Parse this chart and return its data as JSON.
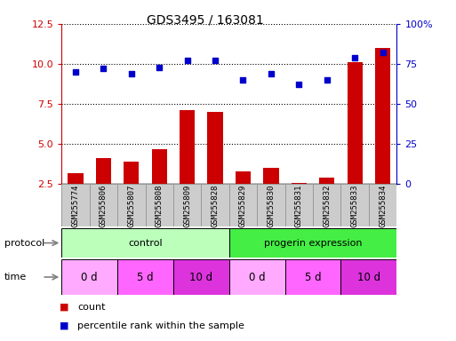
{
  "title": "GDS3495 / 163081",
  "samples": [
    "GSM255774",
    "GSM255806",
    "GSM255807",
    "GSM255808",
    "GSM255809",
    "GSM255828",
    "GSM255829",
    "GSM255830",
    "GSM255831",
    "GSM255832",
    "GSM255833",
    "GSM255834"
  ],
  "count_values": [
    3.2,
    4.1,
    3.9,
    4.7,
    7.1,
    7.0,
    3.3,
    3.5,
    2.6,
    2.9,
    10.1,
    11.0
  ],
  "percentile_values": [
    70,
    72,
    69,
    73,
    77,
    77,
    65,
    69,
    62,
    65,
    79,
    82
  ],
  "ylim_left": [
    2.5,
    12.5
  ],
  "ylim_right": [
    0,
    100
  ],
  "yticks_left": [
    2.5,
    5.0,
    7.5,
    10.0,
    12.5
  ],
  "yticks_right": [
    0,
    25,
    50,
    75,
    100
  ],
  "bar_color": "#cc0000",
  "dot_color": "#0000cc",
  "sample_box_color": "#cccccc",
  "sample_box_border": "#999999",
  "protocol_groups": [
    {
      "label": "control",
      "start": 0,
      "end": 6,
      "color": "#bbffbb"
    },
    {
      "label": "progerin expression",
      "start": 6,
      "end": 12,
      "color": "#44ee44"
    }
  ],
  "time_groups": [
    {
      "label": "0 d",
      "start": 0,
      "end": 2,
      "color": "#ffaaff"
    },
    {
      "label": "5 d",
      "start": 2,
      "end": 4,
      "color": "#ff66ff"
    },
    {
      "label": "10 d",
      "start": 4,
      "end": 6,
      "color": "#dd33dd"
    },
    {
      "label": "0 d",
      "start": 6,
      "end": 8,
      "color": "#ffaaff"
    },
    {
      "label": "5 d",
      "start": 8,
      "end": 10,
      "color": "#ff66ff"
    },
    {
      "label": "10 d",
      "start": 10,
      "end": 12,
      "color": "#dd33dd"
    }
  ],
  "legend_items": [
    {
      "color": "#cc0000",
      "label": "count"
    },
    {
      "color": "#0000cc",
      "label": "percentile rank within the sample"
    }
  ]
}
